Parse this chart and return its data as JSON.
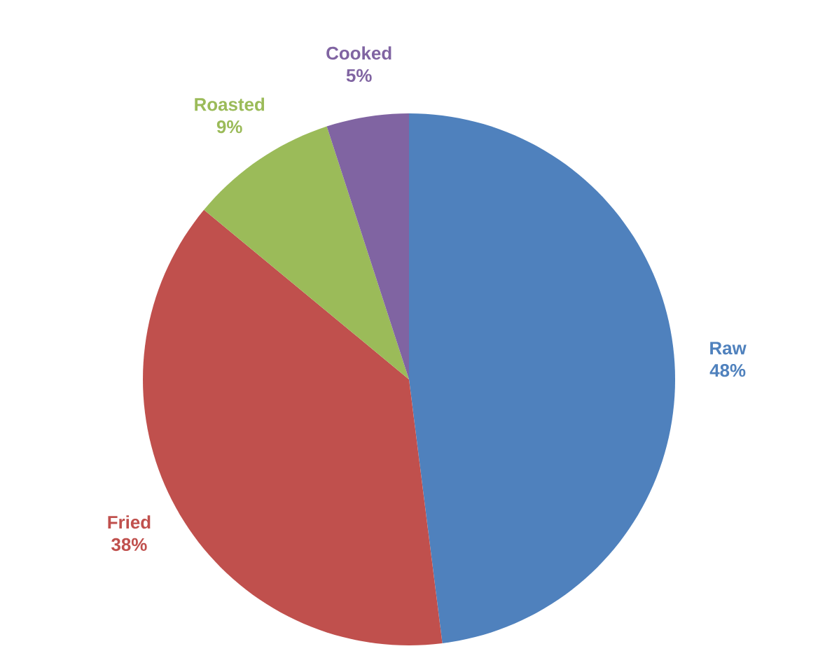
{
  "chart_data": {
    "type": "pie",
    "categories": [
      "Raw",
      "Fried",
      "Roasted",
      "Cooked"
    ],
    "values": [
      48,
      38,
      9,
      5
    ],
    "value_labels": [
      "48%",
      "38%",
      "9%",
      "5%"
    ],
    "colors": [
      "#4f81bd",
      "#c0504d",
      "#9bbb59",
      "#8064a2"
    ]
  }
}
